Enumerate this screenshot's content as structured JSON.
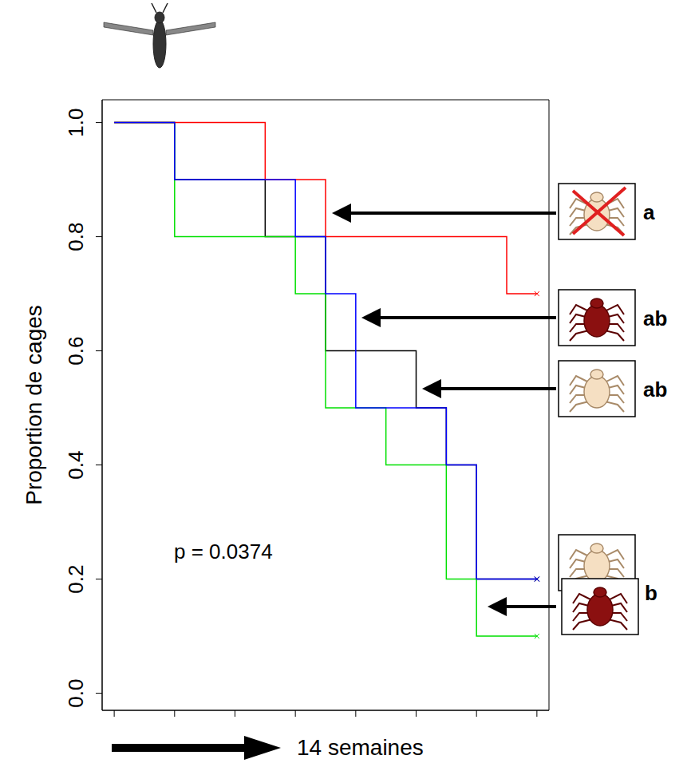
{
  "chart_data": {
    "type": "line",
    "line_style": "step",
    "marker": "x",
    "xlabel": "14 semaines",
    "ylabel": "Proportion de cages",
    "annotations": [
      "p = 0.0374"
    ],
    "xlim": [
      -0.4,
      14.4
    ],
    "xticks": [
      0,
      2,
      4,
      6,
      8,
      10,
      12,
      14
    ],
    "ylim": [
      -0.03,
      1.04
    ],
    "yticks": [
      {
        "value": 0,
        "label": "0.0"
      },
      {
        "value": 0.2,
        "label": "0.2"
      },
      {
        "value": 0.4,
        "label": "0.4"
      },
      {
        "value": 0.6,
        "label": "0.6"
      },
      {
        "value": 0.8,
        "label": "0.8"
      },
      {
        "value": 1,
        "label": "1.0"
      }
    ],
    "tick_labels": "y",
    "grid": false,
    "series": [
      {
        "color": "#000000",
        "annotation": "ab",
        "x": [
          0,
          2,
          5,
          7,
          10,
          11,
          12,
          14
        ],
        "values": [
          1,
          0.9,
          0.8,
          0.6,
          0.5,
          0.4,
          0.2,
          0.2
        ]
      },
      {
        "color": "#00e000",
        "annotation": "b",
        "x": [
          0,
          2,
          6,
          7,
          9,
          11,
          12,
          14
        ],
        "values": [
          1,
          0.8,
          0.7,
          0.5,
          0.4,
          0.2,
          0.1,
          0.1
        ]
      },
      {
        "color": "#ff0000",
        "annotation": "a",
        "x": [
          0,
          5,
          7,
          13,
          14
        ],
        "values": [
          1,
          0.9,
          0.8,
          0.7,
          0.7
        ]
      },
      {
        "color": "#0000ff",
        "annotation": "ab",
        "x": [
          0,
          2,
          6,
          7,
          8,
          11,
          12,
          14
        ],
        "values": [
          1,
          0.9,
          0.8,
          0.7,
          0.5,
          0.4,
          0.2,
          0.2
        ]
      }
    ]
  }
}
